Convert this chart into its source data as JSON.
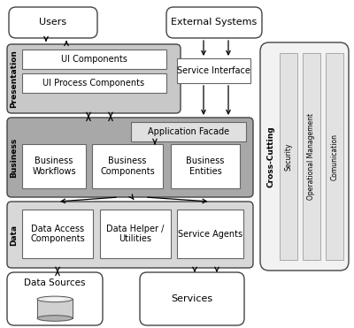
{
  "bg_color": "#ffffff",
  "colors": {
    "pres_layer": "#c8c8c8",
    "biz_layer": "#a8a8a8",
    "data_layer": "#d8d8d8",
    "box_white": "#ffffff",
    "box_light": "#e0e0e0",
    "cc_bg": "#f2f2f2",
    "cc_bar": "#e2e2e2",
    "edge": "#666666",
    "edge_dark": "#444444"
  },
  "labels": {
    "users": "Users",
    "external": "External Systems",
    "presentation": "Presentation",
    "business": "Business",
    "data": "Data",
    "cross_cutting": "Cross-Cutting",
    "ui_components": "UI Components",
    "ui_process": "UI Process Components",
    "service_interface": "Service Interface",
    "app_facade": "Application Facade",
    "biz_workflows": "Business\nWorkflows",
    "biz_components": "Business\nComponents",
    "biz_entities": "Business\nEntities",
    "data_access": "Data Access\nComponents",
    "data_helper": "Data Helper /\nUtilities",
    "service_agents": "Service Agents",
    "data_sources": "Data Sources",
    "services": "Services",
    "security": "Security",
    "op_mgmt": "Operational Management",
    "communication": "Comunication"
  }
}
